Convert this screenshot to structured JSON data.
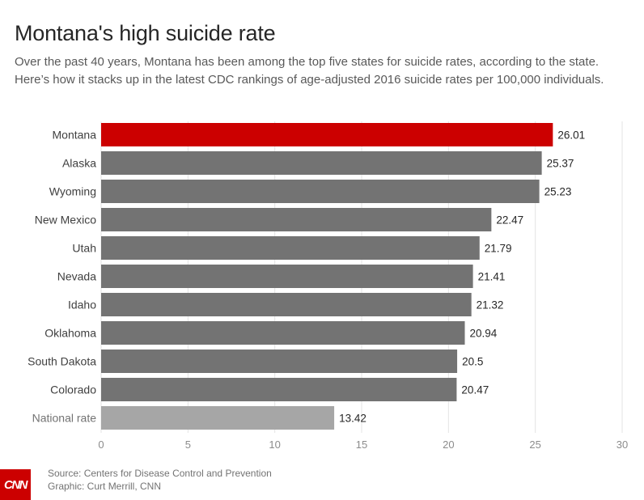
{
  "title": "Montana's high suicide rate",
  "subtitle": "Over the past 40 years, Montana has been among the top five states for suicide rates, according to the state. Here’s how it stacks up in the latest CDC rankings of age-adjusted 2016 suicide rates per 100,000 individuals.",
  "chart_data": {
    "type": "bar",
    "orientation": "horizontal",
    "categories": [
      "Montana",
      "Alaska",
      "Wyoming",
      "New Mexico",
      "Utah",
      "Nevada",
      "Idaho",
      "Oklahoma",
      "South Dakota",
      "Colorado",
      "National rate"
    ],
    "values": [
      26.01,
      25.37,
      25.23,
      22.47,
      21.79,
      21.41,
      21.32,
      20.94,
      20.5,
      20.47,
      13.42
    ],
    "value_labels": [
      "26.01",
      "25.37",
      "25.23",
      "22.47",
      "21.79",
      "21.41",
      "21.32",
      "20.94",
      "20.5",
      "20.47",
      "13.42"
    ],
    "highlight_color": "#cc0000",
    "bar_color": "#737373",
    "national_color": "#a6a6a6",
    "xlim": [
      0,
      30
    ],
    "xticks": [
      0,
      5,
      10,
      15,
      20,
      25,
      30
    ],
    "grid": "vertical"
  },
  "footer": {
    "logo": "CNN",
    "source": "Source: Centers for Disease Control and Prevention",
    "credit": "Graphic: Curt Merrill, CNN"
  }
}
